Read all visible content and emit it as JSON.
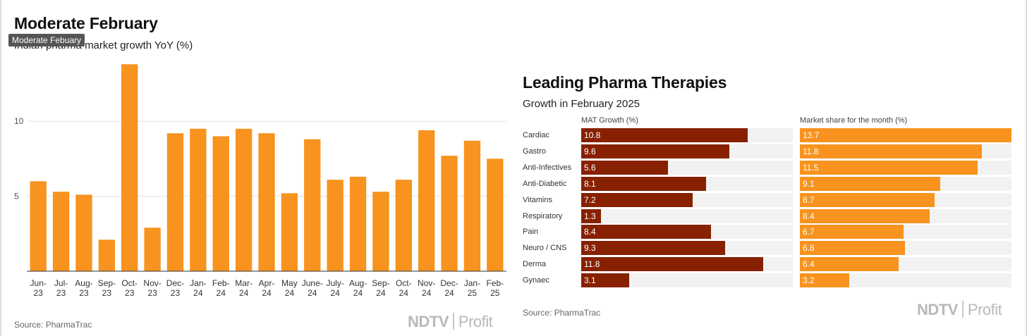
{
  "left": {
    "title": "Moderate February",
    "tooltip": "Moderate Febuary",
    "subtitle": "Indian pharma market growth YoY (%)",
    "source": "Source: PharmaTrac",
    "logo_left": "NDTV",
    "logo_right": "Profit"
  },
  "right": {
    "title": "Leading Pharma Therapies",
    "subtitle": "Growth in February 2025",
    "col1_header": "MAT Growth (%)",
    "col2_header": "Market share for the month (%)",
    "source": "Source: PharmaTrac",
    "logo_left": "NDTV",
    "logo_right": "Profit"
  },
  "colors": {
    "orange": "#F7931E",
    "maroon": "#872100",
    "track": "#f2f2f2",
    "grid": "#e0e0e0"
  },
  "chart_data": [
    {
      "type": "bar",
      "title": "Moderate February",
      "subtitle": "Indian pharma market growth YoY (%)",
      "categories": [
        [
          "Jun-",
          "23"
        ],
        [
          "Jul-",
          "23"
        ],
        [
          "Aug-",
          "23"
        ],
        [
          "Sep-",
          "23"
        ],
        [
          "Oct-",
          "23"
        ],
        [
          "Nov-",
          "23"
        ],
        [
          "Dec-",
          "23"
        ],
        [
          "Jan-",
          "24"
        ],
        [
          "Feb-",
          "24"
        ],
        [
          "Mar-",
          "24"
        ],
        [
          "Apr-",
          "24"
        ],
        [
          "May",
          "24"
        ],
        [
          "June-",
          "24"
        ],
        [
          "July-",
          "24"
        ],
        [
          "Aug-",
          "24"
        ],
        [
          "Sep-",
          "24"
        ],
        [
          "Oct-",
          "24"
        ],
        [
          "Nov-",
          "24"
        ],
        [
          "Dec-",
          "24"
        ],
        [
          "Jan-",
          "25"
        ],
        [
          "Feb-",
          "25"
        ]
      ],
      "values": [
        6.0,
        5.3,
        5.1,
        2.1,
        13.8,
        2.9,
        9.2,
        9.5,
        9.0,
        9.5,
        9.2,
        5.2,
        8.8,
        6.1,
        6.3,
        5.3,
        6.1,
        9.4,
        7.7,
        8.7,
        7.5
      ],
      "yticks": [
        5,
        10
      ],
      "ylim": [
        0,
        14
      ],
      "grid": true,
      "color": "#F7931E"
    },
    {
      "type": "table",
      "title": "Leading Pharma Therapies",
      "subtitle": "Growth in February 2025",
      "rows": [
        "Cardiac",
        "Gastro",
        "Anti-Infectives",
        "Anti-Diabetic",
        "Vitamins",
        "Respiratory",
        "Pain",
        "Neuro / CNS",
        "Derma",
        "Gynaec"
      ],
      "series": [
        {
          "name": "MAT Growth (%)",
          "values": [
            10.8,
            9.6,
            5.6,
            8.1,
            7.2,
            1.3,
            8.4,
            9.3,
            11.8,
            3.1
          ],
          "max": 13.7,
          "color": "#872100"
        },
        {
          "name": "Market share for the month (%)",
          "values": [
            13.7,
            11.8,
            11.5,
            9.1,
            8.7,
            8.4,
            6.7,
            6.8,
            6.4,
            3.2
          ],
          "max": 13.7,
          "color": "#F7931E"
        }
      ]
    }
  ]
}
